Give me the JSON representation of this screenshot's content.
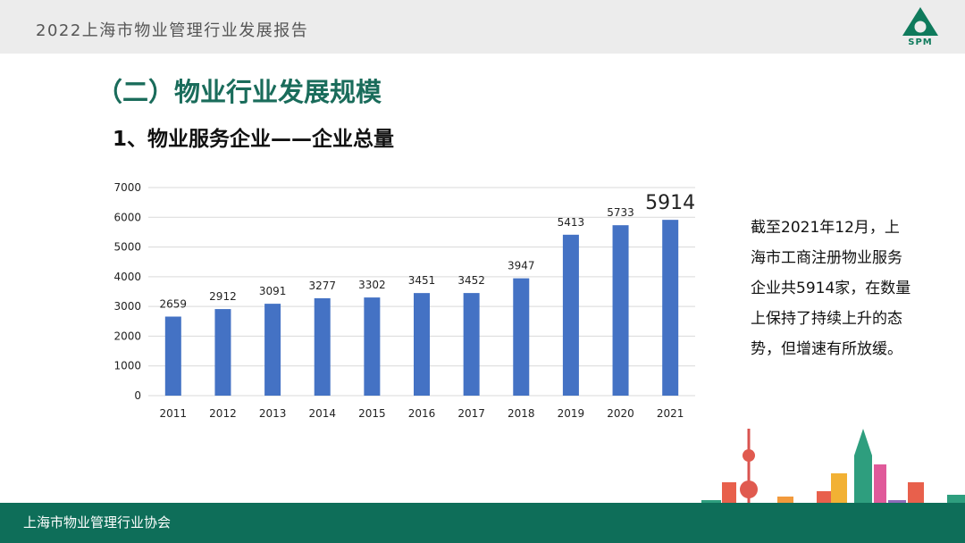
{
  "header": {
    "title": "2022上海市物业管理行业发展报告"
  },
  "logo": {
    "text": "SPM",
    "color": "#0f7a5c"
  },
  "section_title": "（二）物业行业发展规模",
  "sub_title": "1、物业服务企业——企业总量",
  "note": "截至2021年12月，上海市工商注册物业服务企业共5914家，在数量上保持了持续上升的态势，但增速有所放缓。",
  "footer": {
    "text": "上海市物业管理行业协会"
  },
  "colors": {
    "bar": "#4472c4",
    "accent": "#1a6c5b",
    "footer": "#0e6e59"
  },
  "chart_data": {
    "type": "bar",
    "categories": [
      "2011",
      "2012",
      "2013",
      "2014",
      "2015",
      "2016",
      "2017",
      "2018",
      "2019",
      "2020",
      "2021"
    ],
    "values": [
      2659,
      2912,
      3091,
      3277,
      3302,
      3451,
      3452,
      3947,
      5413,
      5733,
      5914
    ],
    "value_labels": [
      "2659",
      "2912",
      "3091",
      "3277",
      "3302",
      "3451",
      "3452",
      "3947",
      "5413",
      "5733",
      "5914"
    ],
    "ylim": [
      0,
      7000
    ],
    "yticks": [
      "0",
      "1000",
      "2000",
      "3000",
      "4000",
      "5000",
      "6000",
      "7000"
    ],
    "grid": true,
    "title": "",
    "xlabel": "",
    "ylabel": "",
    "highlight_last_label": true
  }
}
